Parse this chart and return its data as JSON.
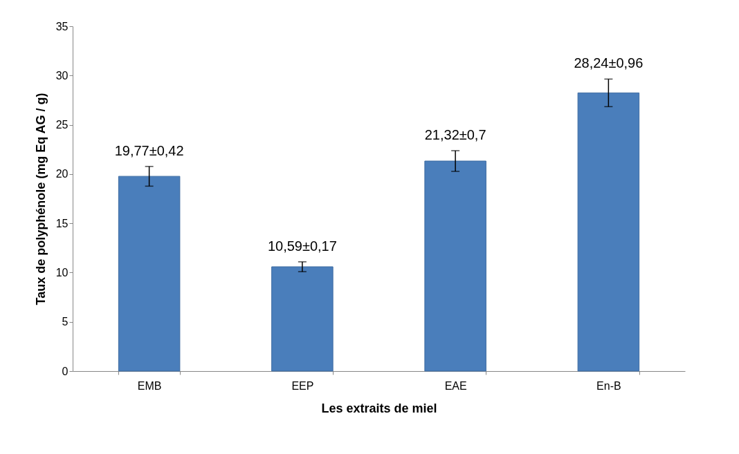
{
  "chart_data": {
    "type": "bar",
    "xlabel": "Les extraits de miel",
    "ylabel": "Taux de polyphénole (mg Eq AG / g)",
    "categories": [
      "EMB",
      "EEP",
      "EAE",
      "En-B"
    ],
    "values": [
      19.77,
      10.59,
      21.32,
      28.24
    ],
    "color": "#4a7ebb",
    "errors": [
      1.0,
      0.5,
      1.05,
      1.4
    ],
    "value_labels": [
      "19,77±0,42",
      "10,59±0,17",
      "21,32±0,7",
      "28,24±0,96"
    ],
    "ylim": [
      0,
      35
    ],
    "yticks": [
      0,
      5,
      10,
      15,
      20,
      25,
      30,
      35
    ],
    "grid": false
  }
}
